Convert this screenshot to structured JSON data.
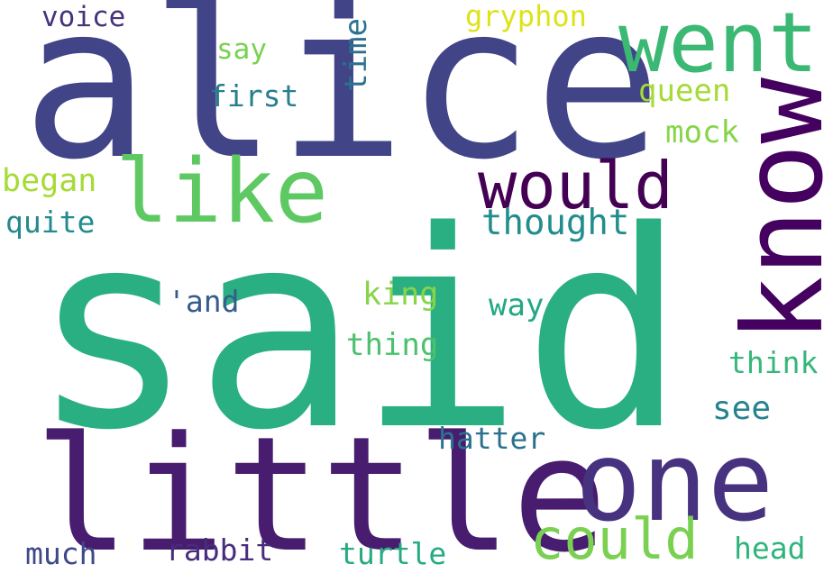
{
  "words": [
    {
      "text": "said",
      "color": "#2aaf82"
    },
    {
      "text": "alice",
      "color": "#414487"
    },
    {
      "text": "little",
      "color": "#481c6e"
    },
    {
      "text": "one",
      "color": "#46327e"
    },
    {
      "text": "know",
      "color": "#44015f"
    },
    {
      "text": "went",
      "color": "#3bb873"
    },
    {
      "text": "like",
      "color": "#5ec962"
    },
    {
      "text": "would",
      "color": "#440154"
    },
    {
      "text": "could",
      "color": "#7ad151"
    },
    {
      "text": "thought",
      "color": "#228d8d"
    },
    {
      "text": "gryphon",
      "color": "#dde318"
    },
    {
      "text": "voice",
      "color": "#46327e"
    },
    {
      "text": "say",
      "color": "#7ad151"
    },
    {
      "text": "first",
      "color": "#277f8e"
    },
    {
      "text": "time",
      "color": "#2c728e"
    },
    {
      "text": "queen",
      "color": "#a5db36"
    },
    {
      "text": "mock",
      "color": "#86d549"
    },
    {
      "text": "began",
      "color": "#a5db36"
    },
    {
      "text": "quite",
      "color": "#238a8d"
    },
    {
      "text": "king",
      "color": "#86d549"
    },
    {
      "text": "'and",
      "color": "#365c8d"
    },
    {
      "text": "way",
      "color": "#22a884"
    },
    {
      "text": "thing",
      "color": "#4ac16d"
    },
    {
      "text": "think",
      "color": "#35b779"
    },
    {
      "text": "see",
      "color": "#26828e"
    },
    {
      "text": "hatter",
      "color": "#2c728e"
    },
    {
      "text": "much",
      "color": "#3e4989"
    },
    {
      "text": "rabbit",
      "color": "#472d7b"
    },
    {
      "text": "turtle",
      "color": "#25ab82"
    },
    {
      "text": "head",
      "color": "#2fb47c"
    }
  ]
}
